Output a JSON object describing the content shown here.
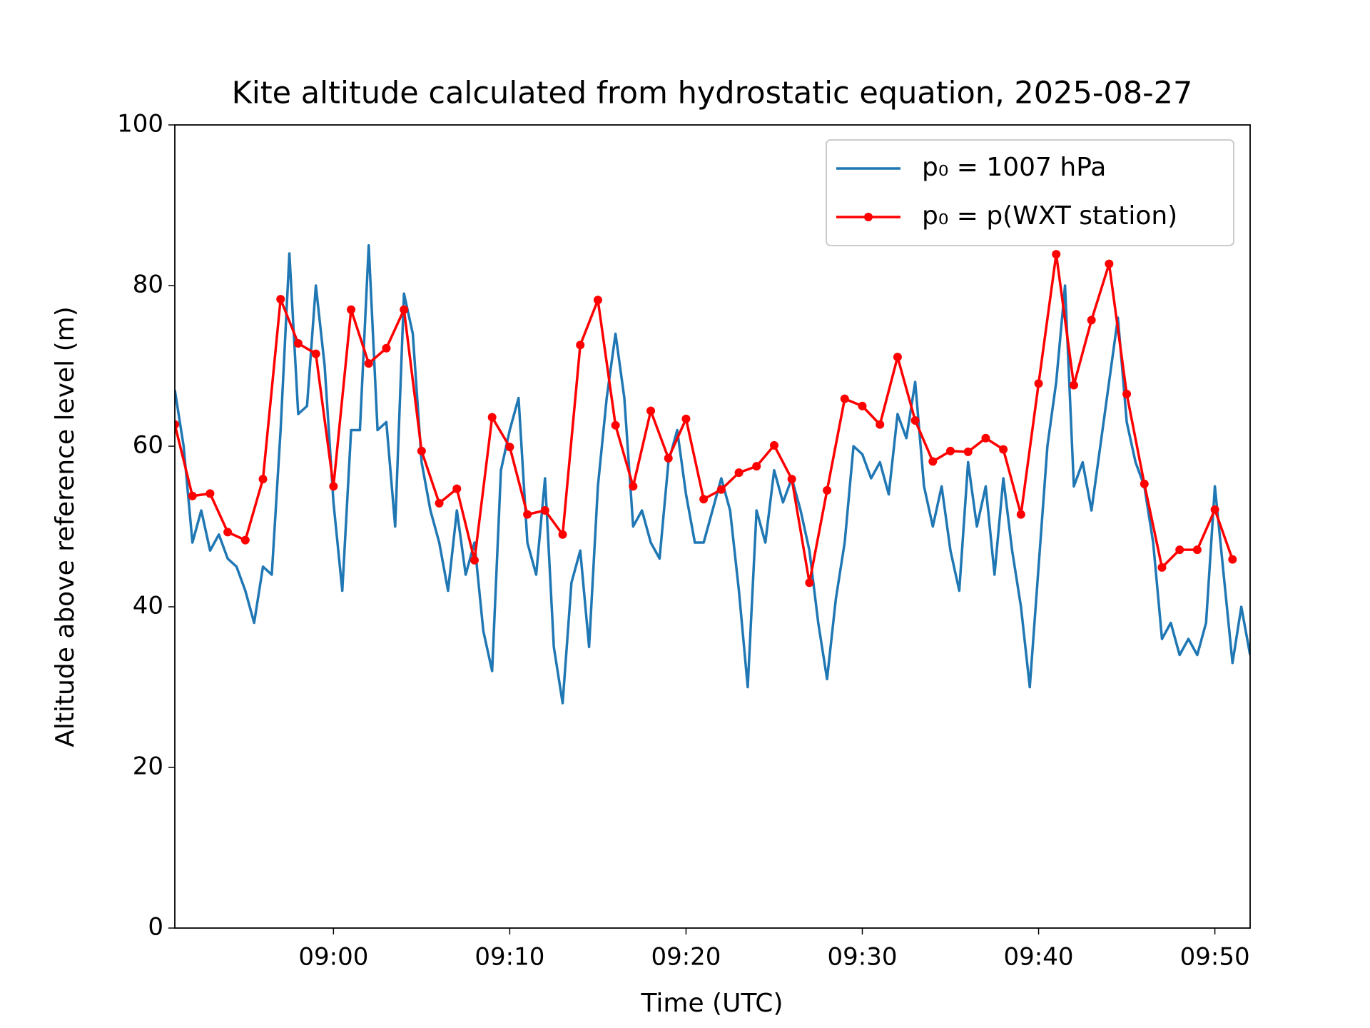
{
  "chart_data": {
    "type": "line",
    "title": "Kite altitude calculated from hydrostatic equation, 2025-08-27",
    "xlabel": "Time (UTC)",
    "ylabel": "Altitude above reference level (m)",
    "xlim": [
      531,
      592
    ],
    "ylim": [
      0,
      100
    ],
    "xticks": [
      {
        "value": 540,
        "label": "09:00"
      },
      {
        "value": 550,
        "label": "09:10"
      },
      {
        "value": 560,
        "label": "09:20"
      },
      {
        "value": 570,
        "label": "09:30"
      },
      {
        "value": 580,
        "label": "09:40"
      },
      {
        "value": 590,
        "label": "09:50"
      }
    ],
    "yticks": [
      0,
      20,
      40,
      60,
      80,
      100
    ],
    "legend": "upper right",
    "series": [
      {
        "name": "p₀ = 1007 hPa",
        "color": "#1f77b4",
        "marker": "none",
        "x": [
          531.0,
          531.5,
          532.0,
          532.5,
          533.0,
          533.5,
          534.0,
          534.5,
          535.0,
          535.5,
          536.0,
          536.5,
          537.0,
          537.5,
          538.0,
          538.5,
          539.0,
          539.5,
          540.0,
          540.5,
          541.0,
          541.5,
          542.0,
          542.5,
          543.0,
          543.5,
          544.0,
          544.5,
          545.0,
          545.5,
          546.0,
          546.5,
          547.0,
          547.5,
          548.0,
          548.5,
          549.0,
          549.5,
          550.0,
          550.5,
          551.0,
          551.5,
          552.0,
          552.5,
          553.0,
          553.5,
          554.0,
          554.5,
          555.0,
          555.5,
          556.0,
          556.5,
          557.0,
          557.5,
          558.0,
          558.5,
          559.0,
          559.5,
          560.0,
          560.5,
          561.0,
          561.5,
          562.0,
          562.5,
          563.0,
          563.5,
          564.0,
          564.5,
          565.0,
          565.5,
          566.0,
          566.5,
          567.0,
          567.5,
          568.0,
          568.5,
          569.0,
          569.5,
          570.0,
          570.5,
          571.0,
          571.5,
          572.0,
          572.5,
          573.0,
          573.5,
          574.0,
          574.5,
          575.0,
          575.5,
          576.0,
          576.5,
          577.0,
          577.5,
          578.0,
          578.5,
          579.0,
          579.5,
          580.0,
          580.5,
          581.0,
          581.5,
          582.0,
          582.5,
          583.0,
          583.5,
          584.0,
          584.5,
          585.0,
          585.5,
          586.0,
          586.5,
          587.0,
          587.5,
          588.0,
          588.5,
          589.0,
          589.5,
          590.0,
          590.5,
          591.0,
          591.5,
          592.0
        ],
        "values": [
          67,
          60,
          48,
          52,
          47,
          49,
          46,
          45,
          42,
          38,
          45,
          44,
          62,
          84,
          64,
          65,
          80,
          70,
          53,
          42,
          62,
          62,
          85,
          62,
          63,
          50,
          79,
          74,
          58,
          52,
          48,
          42,
          52,
          44,
          48,
          37,
          32,
          57,
          62,
          66,
          48,
          44,
          56,
          35,
          28,
          43,
          47,
          35,
          55,
          66,
          74,
          66,
          50,
          52,
          48,
          46,
          58,
          62,
          54,
          48,
          48,
          52,
          56,
          52,
          42,
          30,
          52,
          48,
          57,
          53,
          56,
          52,
          47,
          38,
          31,
          41,
          48,
          60,
          59,
          56,
          58,
          54,
          64,
          61,
          68,
          55,
          50,
          55,
          47,
          42,
          58,
          50,
          55,
          44,
          56,
          47,
          40,
          30,
          45,
          60,
          68,
          80,
          55,
          58,
          52,
          60,
          68,
          76,
          63,
          58,
          55,
          48,
          36,
          38,
          34,
          36,
          34,
          38,
          55,
          44,
          33,
          40,
          34
        ]
      },
      {
        "name": "p₀ = p(WXT station)",
        "color": "#ff0000",
        "marker": "o",
        "x": [
          531,
          532,
          533,
          534,
          535,
          536,
          537,
          538,
          539,
          540,
          541,
          542,
          543,
          544,
          545,
          546,
          547,
          548,
          549,
          550,
          551,
          552,
          553,
          554,
          555,
          556,
          557,
          558,
          559,
          560,
          561,
          562,
          563,
          564,
          565,
          566,
          567,
          568,
          569,
          570,
          571,
          572,
          573,
          574,
          575,
          576,
          577,
          578,
          579,
          580,
          581,
          582,
          583,
          584,
          585,
          586,
          587,
          588,
          589,
          590,
          591
        ],
        "values": [
          62.7,
          53.8,
          54.1,
          49.3,
          48.3,
          55.9,
          78.3,
          72.8,
          71.5,
          55,
          77,
          70.3,
          72.2,
          77,
          59.4,
          52.9,
          54.7,
          45.8,
          63.6,
          59.9,
          51.5,
          52,
          49,
          72.6,
          78.2,
          62.6,
          55,
          64.4,
          58.5,
          63.4,
          53.4,
          54.6,
          56.7,
          57.5,
          60.1,
          55.9,
          43,
          54.5,
          65.9,
          65,
          62.7,
          71.1,
          63.2,
          58.1,
          59.4,
          59.3,
          61,
          59.6,
          51.5,
          67.8,
          83.9,
          67.6,
          75.7,
          82.7,
          66.5,
          55.3,
          44.9,
          47.1,
          47.1,
          52.1,
          45.9
        ]
      }
    ]
  }
}
